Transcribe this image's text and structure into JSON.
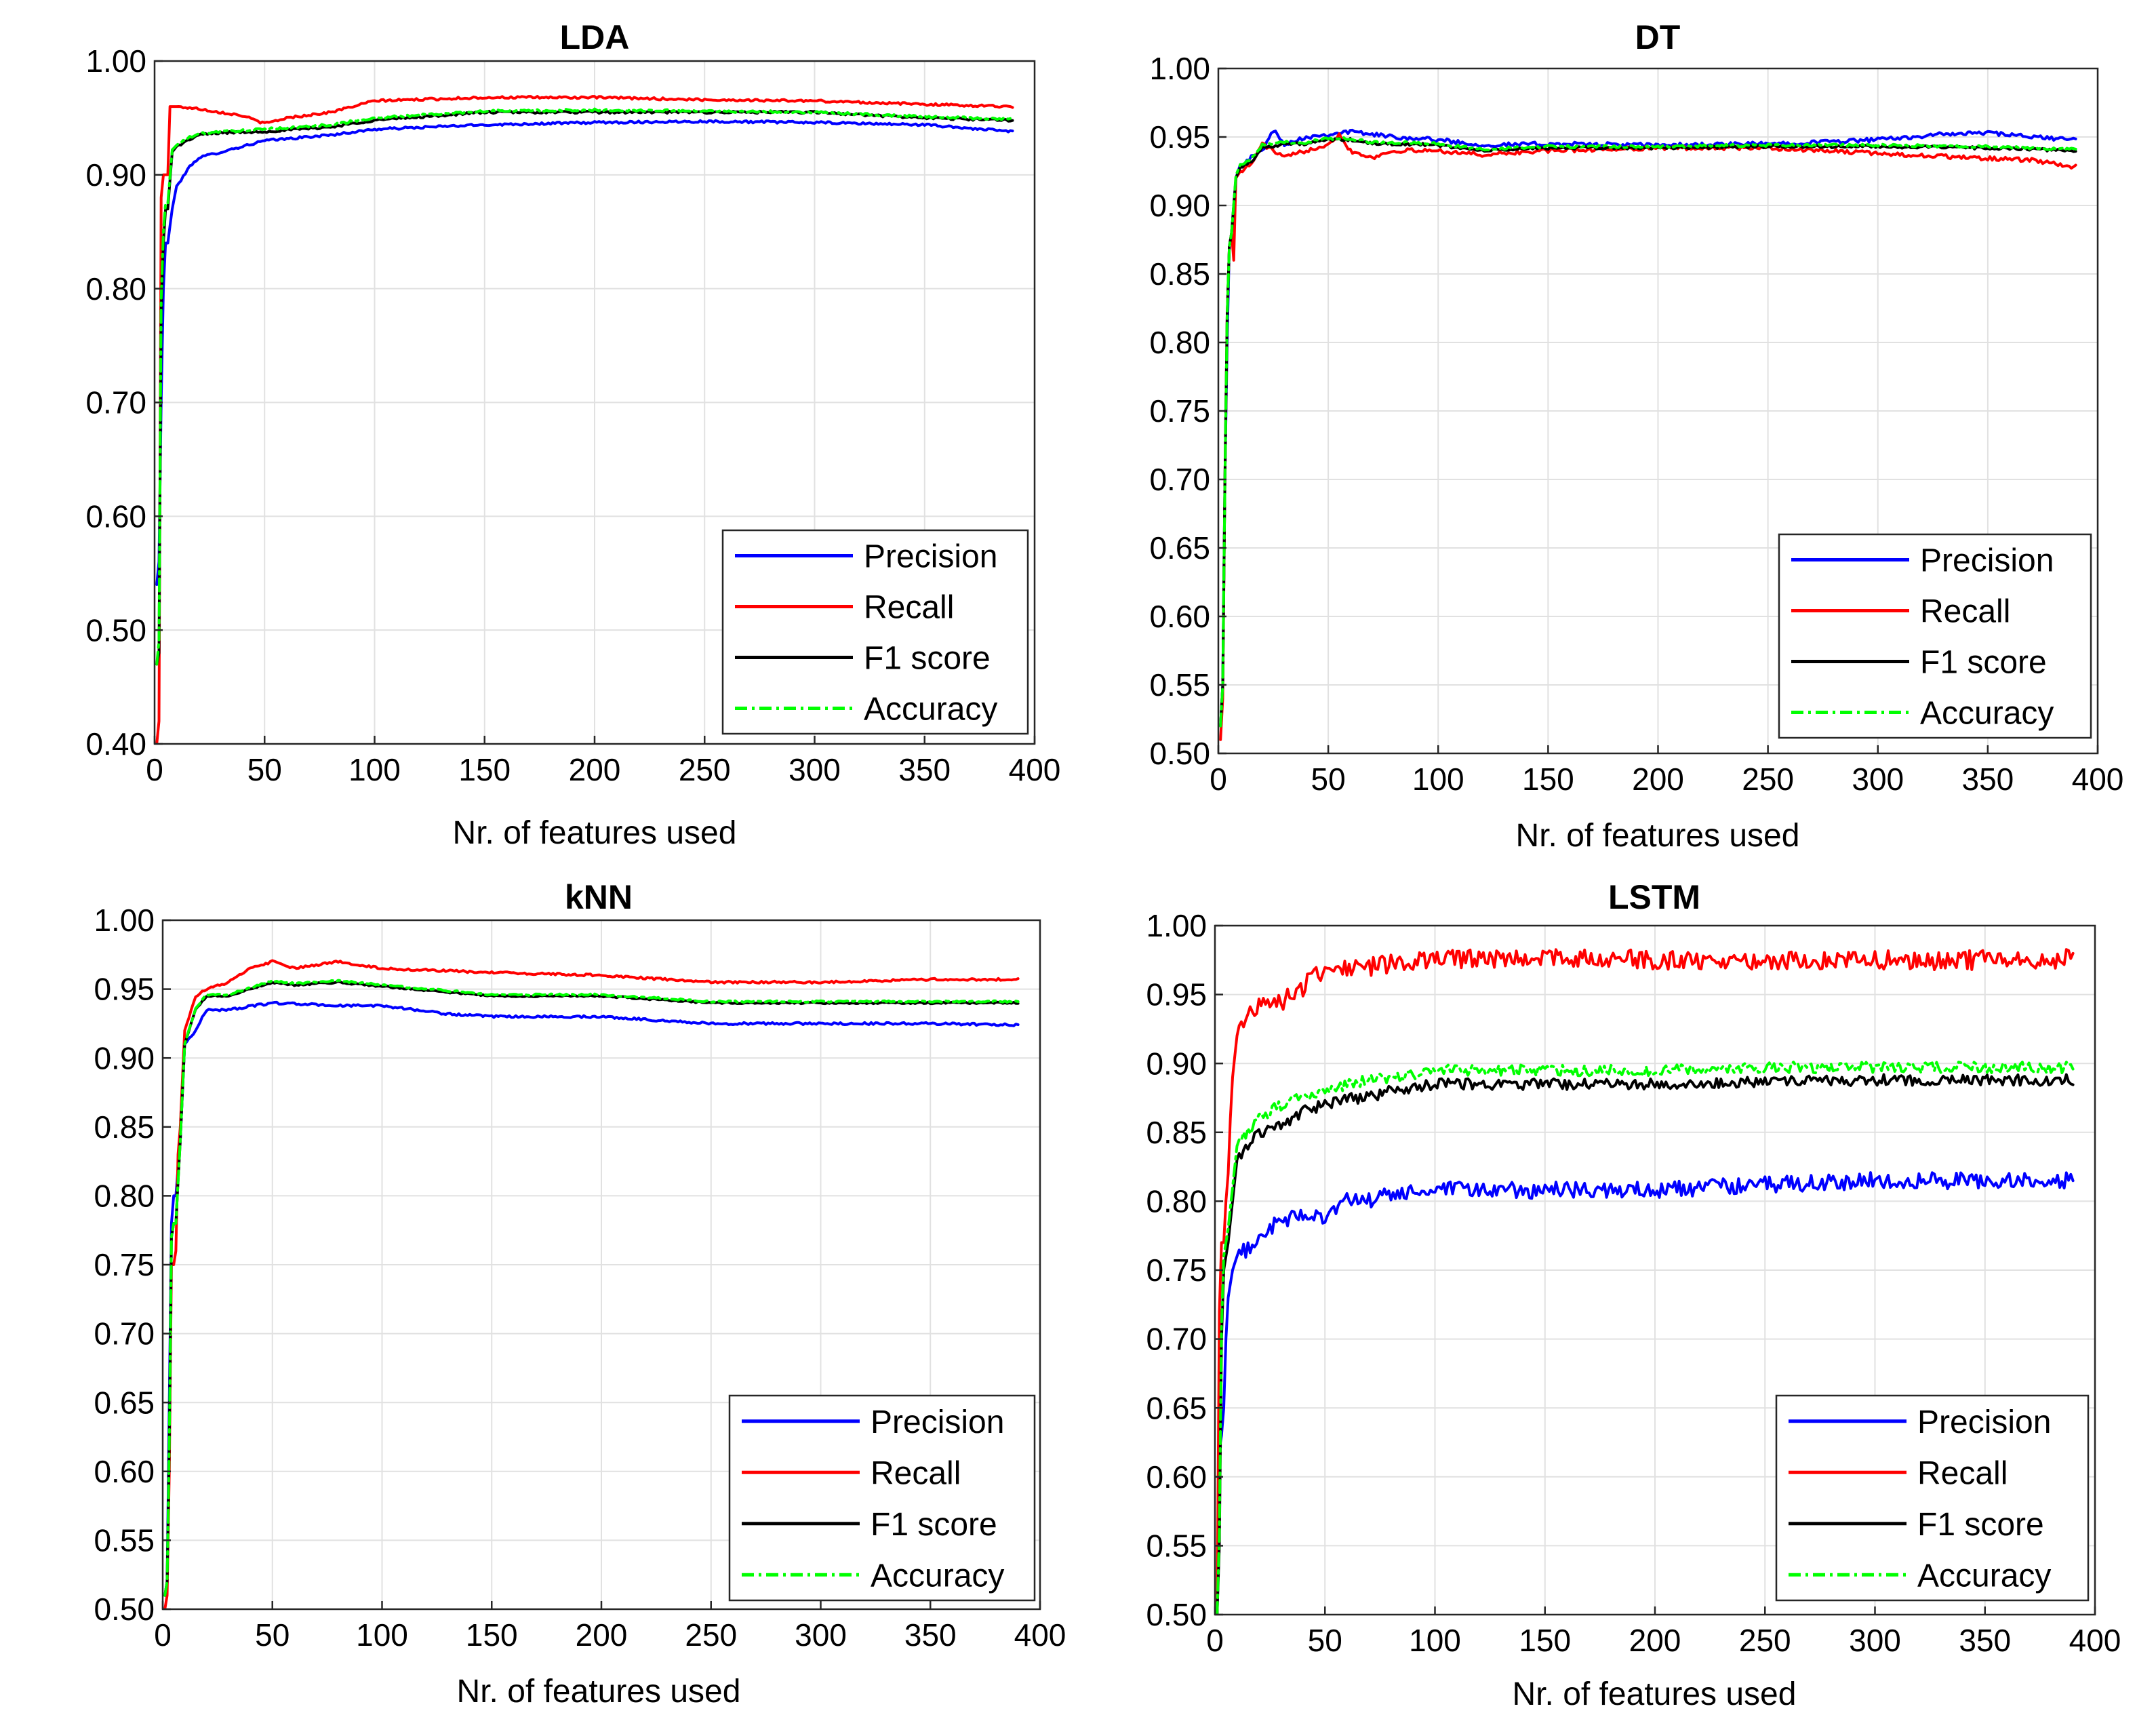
{
  "chart_data": [
    {
      "type": "line",
      "title": "LDA",
      "xlabel": "Nr. of features used",
      "ylabel": "",
      "xlim": [
        0,
        400
      ],
      "ylim": [
        0.4,
        1.0
      ],
      "xticks": [
        0,
        50,
        100,
        150,
        200,
        250,
        300,
        350,
        400
      ],
      "xtick_labels": [
        "0",
        "50",
        "100",
        "150",
        "200",
        "250",
        "300",
        "350",
        "400"
      ],
      "yticks": [
        0.4,
        0.5,
        0.6,
        0.7,
        0.8,
        0.9,
        1.0
      ],
      "ytick_labels": [
        "0.40",
        "0.50",
        "0.60",
        "0.70",
        "0.80",
        "0.90",
        "1.00"
      ],
      "legend_position": "bottom-right",
      "series": [
        {
          "name": "Precision",
          "color": "#0000ff",
          "dash": "solid",
          "noise": 0.001,
          "x": [
            1,
            2,
            3,
            4,
            5,
            6,
            8,
            10,
            12,
            15,
            20,
            30,
            50,
            80,
            100,
            150,
            200,
            250,
            300,
            350,
            390
          ],
          "y": [
            0.54,
            0.56,
            0.7,
            0.8,
            0.84,
            0.84,
            0.87,
            0.89,
            0.895,
            0.905,
            0.915,
            0.92,
            0.93,
            0.935,
            0.94,
            0.944,
            0.946,
            0.947,
            0.946,
            0.944,
            0.938
          ]
        },
        {
          "name": "Recall",
          "color": "#ff0000",
          "dash": "solid",
          "noise": 0.001,
          "x": [
            1,
            2,
            3,
            4,
            5,
            6,
            7,
            8,
            10,
            20,
            30,
            40,
            50,
            60,
            80,
            100,
            150,
            200,
            250,
            300,
            350,
            390
          ],
          "y": [
            0.4,
            0.42,
            0.88,
            0.9,
            0.9,
            0.9,
            0.96,
            0.96,
            0.96,
            0.958,
            0.955,
            0.952,
            0.945,
            0.95,
            0.955,
            0.965,
            0.968,
            0.968,
            0.966,
            0.965,
            0.962,
            0.96
          ]
        },
        {
          "name": "F1 score",
          "color": "#000000",
          "dash": "solid",
          "noise": 0.001,
          "x": [
            1,
            2,
            3,
            4,
            5,
            6,
            8,
            10,
            15,
            20,
            30,
            50,
            80,
            100,
            150,
            200,
            250,
            300,
            350,
            390
          ],
          "y": [
            0.47,
            0.48,
            0.78,
            0.84,
            0.87,
            0.87,
            0.92,
            0.925,
            0.93,
            0.935,
            0.937,
            0.938,
            0.942,
            0.948,
            0.955,
            0.955,
            0.955,
            0.955,
            0.95,
            0.948
          ]
        },
        {
          "name": "Accuracy",
          "color": "#00ff00",
          "dash": "dashdot",
          "noise": 0.001,
          "x": [
            1,
            2,
            3,
            4,
            5,
            6,
            8,
            10,
            15,
            20,
            30,
            50,
            80,
            100,
            150,
            200,
            250,
            300,
            350,
            390
          ],
          "y": [
            0.47,
            0.49,
            0.79,
            0.85,
            0.875,
            0.875,
            0.922,
            0.926,
            0.932,
            0.936,
            0.938,
            0.94,
            0.944,
            0.95,
            0.956,
            0.957,
            0.956,
            0.955,
            0.951,
            0.949
          ]
        }
      ]
    },
    {
      "type": "line",
      "title": "DT",
      "xlabel": "Nr. of features used",
      "ylabel": "",
      "xlim": [
        0,
        400
      ],
      "ylim": [
        0.5,
        1.0
      ],
      "xticks": [
        0,
        50,
        100,
        150,
        200,
        250,
        300,
        350,
        400
      ],
      "xtick_labels": [
        "0",
        "50",
        "100",
        "150",
        "200",
        "250",
        "300",
        "350",
        "400"
      ],
      "yticks": [
        0.5,
        0.55,
        0.6,
        0.65,
        0.7,
        0.75,
        0.8,
        0.85,
        0.9,
        0.95,
        1.0
      ],
      "ytick_labels": [
        "0.50",
        "0.55",
        "0.60",
        "0.65",
        "0.70",
        "0.75",
        "0.80",
        "0.85",
        "0.90",
        "0.95",
        "1.00"
      ],
      "legend_position": "bottom-right",
      "series": [
        {
          "name": "Precision",
          "color": "#0000ff",
          "dash": "solid",
          "noise": 0.0015,
          "x": [
            1,
            2,
            3,
            4,
            5,
            6,
            8,
            10,
            15,
            20,
            25,
            30,
            40,
            50,
            60,
            70,
            80,
            100,
            120,
            150,
            200,
            250,
            300,
            330,
            350,
            370,
            390
          ],
          "y": [
            0.52,
            0.55,
            0.7,
            0.8,
            0.87,
            0.88,
            0.92,
            0.93,
            0.935,
            0.94,
            0.955,
            0.945,
            0.95,
            0.952,
            0.954,
            0.952,
            0.95,
            0.948,
            0.944,
            0.945,
            0.944,
            0.945,
            0.948,
            0.952,
            0.953,
            0.95,
            0.948
          ]
        },
        {
          "name": "Recall",
          "color": "#ff0000",
          "dash": "solid",
          "noise": 0.0015,
          "x": [
            1,
            2,
            3,
            4,
            5,
            6,
            7,
            8,
            10,
            15,
            20,
            25,
            30,
            40,
            50,
            55,
            60,
            70,
            80,
            100,
            120,
            150,
            200,
            250,
            300,
            340,
            370,
            390
          ],
          "y": [
            0.51,
            0.54,
            0.7,
            0.82,
            0.87,
            0.88,
            0.86,
            0.92,
            0.925,
            0.93,
            0.945,
            0.94,
            0.935,
            0.94,
            0.945,
            0.952,
            0.94,
            0.935,
            0.94,
            0.94,
            0.937,
            0.94,
            0.942,
            0.942,
            0.938,
            0.935,
            0.933,
            0.928
          ]
        },
        {
          "name": "F1 score",
          "color": "#000000",
          "dash": "solid",
          "noise": 0.001,
          "x": [
            1,
            2,
            3,
            4,
            5,
            6,
            8,
            10,
            15,
            20,
            30,
            40,
            50,
            60,
            70,
            80,
            100,
            120,
            150,
            200,
            250,
            300,
            350,
            390
          ],
          "y": [
            0.52,
            0.55,
            0.7,
            0.82,
            0.87,
            0.88,
            0.92,
            0.928,
            0.932,
            0.942,
            0.945,
            0.945,
            0.948,
            0.948,
            0.945,
            0.945,
            0.944,
            0.94,
            0.942,
            0.942,
            0.943,
            0.943,
            0.942,
            0.94
          ]
        },
        {
          "name": "Accuracy",
          "color": "#00ff00",
          "dash": "dashdot",
          "noise": 0.001,
          "x": [
            1,
            2,
            3,
            4,
            5,
            6,
            8,
            10,
            15,
            20,
            30,
            40,
            50,
            60,
            70,
            80,
            100,
            120,
            150,
            200,
            250,
            300,
            350,
            390
          ],
          "y": [
            0.52,
            0.55,
            0.7,
            0.82,
            0.87,
            0.88,
            0.922,
            0.93,
            0.934,
            0.944,
            0.946,
            0.946,
            0.949,
            0.949,
            0.946,
            0.946,
            0.945,
            0.941,
            0.943,
            0.943,
            0.944,
            0.944,
            0.943,
            0.941
          ]
        }
      ]
    },
    {
      "type": "line",
      "title": "kNN",
      "xlabel": "Nr. of features used",
      "ylabel": "",
      "xlim": [
        0,
        400
      ],
      "ylim": [
        0.5,
        1.0
      ],
      "xticks": [
        0,
        50,
        100,
        150,
        200,
        250,
        300,
        350,
        400
      ],
      "xtick_labels": [
        "0",
        "50",
        "100",
        "150",
        "200",
        "250",
        "300",
        "350",
        "400"
      ],
      "yticks": [
        0.5,
        0.55,
        0.6,
        0.65,
        0.7,
        0.75,
        0.8,
        0.85,
        0.9,
        0.95,
        1.0
      ],
      "ytick_labels": [
        "0.50",
        "0.55",
        "0.60",
        "0.65",
        "0.70",
        "0.75",
        "0.80",
        "0.85",
        "0.90",
        "0.95",
        "1.00"
      ],
      "legend_position": "bottom-right",
      "series": [
        {
          "name": "Precision",
          "color": "#0000ff",
          "dash": "solid",
          "noise": 0.0008,
          "x": [
            1,
            2,
            3,
            4,
            5,
            6,
            8,
            10,
            15,
            20,
            30,
            50,
            80,
            100,
            130,
            150,
            200,
            250,
            300,
            350,
            390
          ],
          "y": [
            0.51,
            0.52,
            0.65,
            0.78,
            0.8,
            0.8,
            0.84,
            0.91,
            0.92,
            0.935,
            0.935,
            0.94,
            0.938,
            0.938,
            0.932,
            0.93,
            0.93,
            0.925,
            0.925,
            0.925,
            0.924
          ]
        },
        {
          "name": "Recall",
          "color": "#ff0000",
          "dash": "solid",
          "noise": 0.0008,
          "x": [
            1,
            2,
            3,
            4,
            5,
            6,
            7,
            8,
            10,
            15,
            20,
            30,
            40,
            50,
            60,
            80,
            100,
            150,
            200,
            250,
            300,
            350,
            390
          ],
          "y": [
            0.5,
            0.51,
            0.6,
            0.75,
            0.75,
            0.76,
            0.83,
            0.85,
            0.92,
            0.945,
            0.95,
            0.955,
            0.965,
            0.97,
            0.965,
            0.97,
            0.965,
            0.962,
            0.96,
            0.955,
            0.955,
            0.957,
            0.957
          ]
        },
        {
          "name": "F1 score",
          "color": "#000000",
          "dash": "solid",
          "noise": 0.0006,
          "x": [
            1,
            2,
            3,
            4,
            5,
            6,
            8,
            10,
            15,
            20,
            30,
            40,
            50,
            60,
            80,
            100,
            150,
            200,
            250,
            300,
            350,
            390
          ],
          "y": [
            0.51,
            0.52,
            0.62,
            0.77,
            0.78,
            0.78,
            0.84,
            0.91,
            0.935,
            0.945,
            0.945,
            0.95,
            0.955,
            0.953,
            0.955,
            0.952,
            0.945,
            0.945,
            0.94,
            0.94,
            0.94,
            0.94
          ]
        },
        {
          "name": "Accuracy",
          "color": "#00ff00",
          "dash": "dashdot",
          "noise": 0.0006,
          "x": [
            1,
            2,
            3,
            4,
            5,
            6,
            8,
            10,
            15,
            20,
            30,
            40,
            50,
            60,
            80,
            100,
            150,
            200,
            250,
            300,
            350,
            390
          ],
          "y": [
            0.51,
            0.52,
            0.62,
            0.77,
            0.78,
            0.78,
            0.84,
            0.91,
            0.936,
            0.946,
            0.946,
            0.951,
            0.956,
            0.954,
            0.956,
            0.953,
            0.946,
            0.946,
            0.941,
            0.941,
            0.941,
            0.941
          ]
        }
      ]
    },
    {
      "type": "line",
      "title": "LSTM",
      "xlabel": "Nr. of features used",
      "ylabel": "",
      "xlim": [
        0,
        400
      ],
      "ylim": [
        0.5,
        1.0
      ],
      "xticks": [
        0,
        50,
        100,
        150,
        200,
        250,
        300,
        350,
        400
      ],
      "xtick_labels": [
        "0",
        "50",
        "100",
        "150",
        "200",
        "250",
        "300",
        "350",
        "400"
      ],
      "yticks": [
        0.5,
        0.55,
        0.6,
        0.65,
        0.7,
        0.75,
        0.8,
        0.85,
        0.9,
        0.95,
        1.0
      ],
      "ytick_labels": [
        "0.50",
        "0.55",
        "0.60",
        "0.65",
        "0.70",
        "0.75",
        "0.80",
        "0.85",
        "0.90",
        "0.95",
        "1.00"
      ],
      "legend_position": "bottom-right",
      "series": [
        {
          "name": "Precision",
          "color": "#0000ff",
          "dash": "solid",
          "noise": 0.006,
          "x": [
            1,
            2,
            3,
            4,
            5,
            6,
            8,
            10,
            15,
            20,
            30,
            40,
            50,
            60,
            70,
            80,
            100,
            150,
            200,
            250,
            300,
            350,
            390
          ],
          "y": [
            0.5,
            0.62,
            0.63,
            0.65,
            0.7,
            0.73,
            0.75,
            0.76,
            0.765,
            0.775,
            0.785,
            0.79,
            0.79,
            0.8,
            0.8,
            0.805,
            0.808,
            0.808,
            0.808,
            0.812,
            0.815,
            0.815,
            0.815
          ]
        },
        {
          "name": "Recall",
          "color": "#ff0000",
          "dash": "solid",
          "noise": 0.007,
          "x": [
            1,
            2,
            3,
            4,
            5,
            6,
            7,
            8,
            10,
            15,
            20,
            30,
            40,
            50,
            60,
            70,
            80,
            100,
            150,
            200,
            250,
            300,
            350,
            390
          ],
          "y": [
            0.5,
            0.72,
            0.77,
            0.77,
            0.8,
            0.82,
            0.86,
            0.89,
            0.92,
            0.935,
            0.945,
            0.945,
            0.955,
            0.97,
            0.97,
            0.97,
            0.972,
            0.975,
            0.977,
            0.975,
            0.975,
            0.975,
            0.975,
            0.976
          ]
        },
        {
          "name": "F1 score",
          "color": "#000000",
          "dash": "solid",
          "noise": 0.004,
          "x": [
            1,
            2,
            3,
            4,
            5,
            6,
            8,
            10,
            15,
            20,
            30,
            40,
            50,
            60,
            70,
            80,
            100,
            150,
            200,
            250,
            300,
            350,
            390
          ],
          "y": [
            0.5,
            0.55,
            0.7,
            0.75,
            0.76,
            0.77,
            0.8,
            0.83,
            0.84,
            0.85,
            0.855,
            0.865,
            0.87,
            0.875,
            0.875,
            0.88,
            0.885,
            0.885,
            0.885,
            0.887,
            0.888,
            0.888,
            0.888
          ]
        },
        {
          "name": "Accuracy",
          "color": "#00ff00",
          "dash": "dashdot",
          "noise": 0.004,
          "x": [
            1,
            2,
            3,
            4,
            5,
            6,
            8,
            10,
            15,
            20,
            30,
            40,
            50,
            60,
            70,
            80,
            100,
            150,
            200,
            250,
            300,
            350,
            390
          ],
          "y": [
            0.5,
            0.56,
            0.71,
            0.76,
            0.77,
            0.78,
            0.81,
            0.84,
            0.85,
            0.86,
            0.87,
            0.875,
            0.88,
            0.885,
            0.888,
            0.89,
            0.895,
            0.895,
            0.895,
            0.897,
            0.897,
            0.897,
            0.897
          ]
        }
      ]
    }
  ]
}
